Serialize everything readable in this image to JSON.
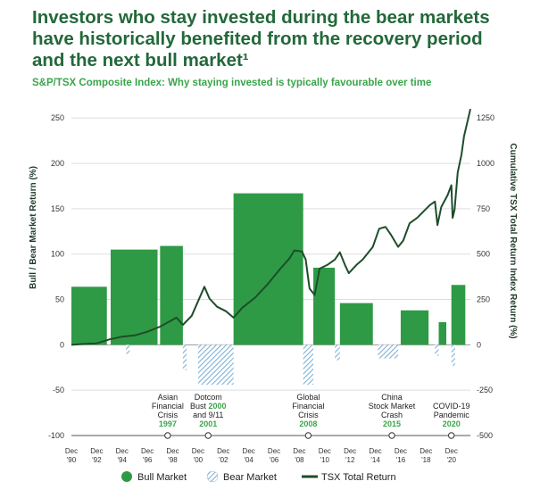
{
  "title_lines": [
    "Investors who stay invested during the bear markets",
    "have historically benefited from the recovery period",
    "and the next bull market¹"
  ],
  "subtitle": "S&P/TSX Composite Index: Why staying invested is typically favourable over time",
  "colors": {
    "bull": "#2e9a45",
    "bear": "#7fb1d6",
    "line": "#1e4d2b",
    "title": "#23683a",
    "subtitle": "#3aa54a"
  },
  "chart_data": {
    "type": "bar",
    "left_axis": {
      "label": "Bull / Bear Market Return (%)",
      "ticks": [
        -100,
        -50,
        0,
        50,
        100,
        150,
        200,
        250
      ],
      "range": [
        -100,
        265
      ]
    },
    "right_axis": {
      "label": "Cumulative TSX Total Return Index Return (%)",
      "ticks": [
        -500,
        -250,
        0,
        250,
        500,
        750,
        1000,
        1250
      ],
      "range": [
        -500,
        1325
      ]
    },
    "x_range": [
      1990,
      2021.5
    ],
    "x_ticks": [
      {
        "x": 1990,
        "l1": "Dec",
        "l2": "'90"
      },
      {
        "x": 1992,
        "l1": "Dec",
        "l2": "'92"
      },
      {
        "x": 1994,
        "l1": "Dec",
        "l2": "'94"
      },
      {
        "x": 1996,
        "l1": "Dec",
        "l2": "'96"
      },
      {
        "x": 1998,
        "l1": "Dec",
        "l2": "'98"
      },
      {
        "x": 2000,
        "l1": "Dec",
        "l2": "'00"
      },
      {
        "x": 2002,
        "l1": "Dec",
        "l2": "'02"
      },
      {
        "x": 2004,
        "l1": "Dec",
        "l2": "'04"
      },
      {
        "x": 2006,
        "l1": "Dec",
        "l2": "'06"
      },
      {
        "x": 2008,
        "l1": "Dec",
        "l2": "'08"
      },
      {
        "x": 2010,
        "l1": "Dec",
        "l2": "'10"
      },
      {
        "x": 2012,
        "l1": "Dec",
        "l2": "'12"
      },
      {
        "x": 2014,
        "l1": "Dec",
        "l2": "'14"
      },
      {
        "x": 2016,
        "l1": "Dec",
        "l2": "'16"
      },
      {
        "x": 2018,
        "l1": "Dec",
        "l2": "'18"
      },
      {
        "x": 2020,
        "l1": "Dec",
        "l2": "'20"
      }
    ],
    "bull_bars": [
      {
        "x0": 1990.0,
        "x1": 1992.8,
        "value": 64
      },
      {
        "x0": 1993.1,
        "x1": 1996.8,
        "value": 105
      },
      {
        "x0": 1997.0,
        "x1": 1998.8,
        "value": 109
      },
      {
        "x0": 2002.8,
        "x1": 2008.3,
        "value": 167
      },
      {
        "x0": 2009.1,
        "x1": 2010.8,
        "value": 85
      },
      {
        "x0": 2011.2,
        "x1": 2013.8,
        "value": 46
      },
      {
        "x0": 2016.0,
        "x1": 2018.2,
        "value": 38
      },
      {
        "x0": 2019.0,
        "x1": 2019.6,
        "value": 25
      },
      {
        "x0": 2020.0,
        "x1": 2021.1,
        "value": 66
      }
    ],
    "bear_bars": [
      {
        "x0": 1994.3,
        "x1": 1994.6,
        "value": -10
      },
      {
        "x0": 1998.8,
        "x1": 1999.1,
        "value": -28
      },
      {
        "x0": 2000.0,
        "x1": 2002.8,
        "value": -44
      },
      {
        "x0": 2008.3,
        "x1": 2009.1,
        "value": -44
      },
      {
        "x0": 2010.8,
        "x1": 2011.2,
        "value": -17
      },
      {
        "x0": 2014.2,
        "x1": 2015.8,
        "value": -15
      },
      {
        "x0": 2018.7,
        "x1": 2019.0,
        "value": -12
      },
      {
        "x0": 2020.0,
        "x1": 2020.3,
        "value": -23
      }
    ],
    "tsx_total_return": [
      [
        1990.0,
        0
      ],
      [
        1991,
        5
      ],
      [
        1992,
        8
      ],
      [
        1993,
        30
      ],
      [
        1994,
        45
      ],
      [
        1995,
        52
      ],
      [
        1996,
        72
      ],
      [
        1997,
        100
      ],
      [
        1998.3,
        150
      ],
      [
        1998.8,
        110
      ],
      [
        1999.5,
        160
      ],
      [
        2000.5,
        320
      ],
      [
        2000.9,
        255
      ],
      [
        2001.5,
        210
      ],
      [
        2002.2,
        185
      ],
      [
        2002.8,
        150
      ],
      [
        2003.5,
        205
      ],
      [
        2004.5,
        260
      ],
      [
        2005.5,
        335
      ],
      [
        2006.5,
        420
      ],
      [
        2007.2,
        475
      ],
      [
        2007.6,
        520
      ],
      [
        2008.2,
        515
      ],
      [
        2008.5,
        470
      ],
      [
        2008.8,
        310
      ],
      [
        2009.2,
        275
      ],
      [
        2009.6,
        420
      ],
      [
        2010.2,
        440
      ],
      [
        2010.8,
        470
      ],
      [
        2011.2,
        510
      ],
      [
        2011.6,
        440
      ],
      [
        2011.9,
        395
      ],
      [
        2012.5,
        440
      ],
      [
        2013,
        470
      ],
      [
        2013.8,
        540
      ],
      [
        2014.3,
        640
      ],
      [
        2014.8,
        650
      ],
      [
        2015.2,
        610
      ],
      [
        2015.8,
        540
      ],
      [
        2016.2,
        575
      ],
      [
        2016.7,
        670
      ],
      [
        2017.3,
        700
      ],
      [
        2017.8,
        735
      ],
      [
        2018.3,
        770
      ],
      [
        2018.7,
        790
      ],
      [
        2018.9,
        660
      ],
      [
        2019.2,
        760
      ],
      [
        2019.7,
        825
      ],
      [
        2020.0,
        880
      ],
      [
        2020.1,
        700
      ],
      [
        2020.25,
        745
      ],
      [
        2020.5,
        950
      ],
      [
        2020.8,
        1050
      ],
      [
        2021.0,
        1150
      ],
      [
        2021.3,
        1240
      ],
      [
        2021.5,
        1300
      ]
    ],
    "events": [
      {
        "x": 1997.6,
        "lines": [
          "Asian",
          "Financial",
          "Crisis"
        ],
        "year": "1997"
      },
      {
        "x": 2000.8,
        "lines": [
          "Dotcom",
          "Bust",
          "and 9/11"
        ],
        "year_inline": "2000",
        "year": "2001"
      },
      {
        "x": 2008.7,
        "lines": [
          "Global",
          "Financial",
          "Crisis"
        ],
        "year": "2008"
      },
      {
        "x": 2015.3,
        "lines": [
          "China",
          "Stock Market",
          "Crash"
        ],
        "year": "2015"
      },
      {
        "x": 2020.0,
        "lines": [
          "COVID-19",
          "Pandemic"
        ],
        "year": "2020"
      }
    ],
    "legend": [
      {
        "key": "bull",
        "label": "Bull Market"
      },
      {
        "key": "bear",
        "label": "Bear Market"
      },
      {
        "key": "line",
        "label": "TSX Total Return"
      }
    ]
  }
}
